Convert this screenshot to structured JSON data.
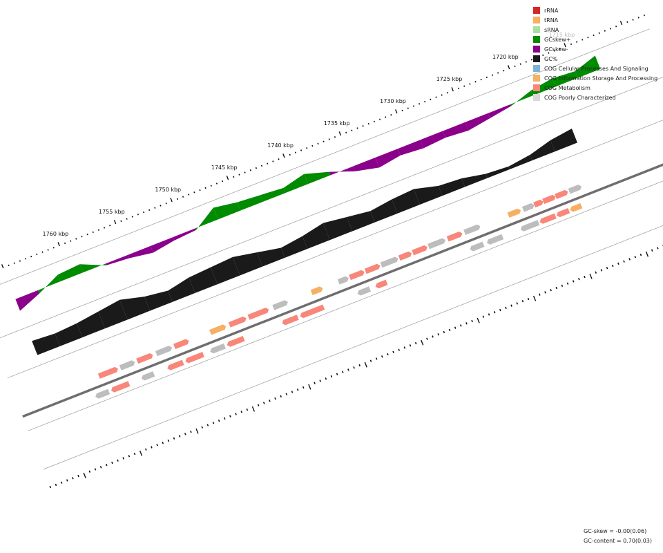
{
  "legend": [
    {
      "label": "rRNA",
      "color": "#d62728"
    },
    {
      "label": "tRNA",
      "color": "#f5b062"
    },
    {
      "label": "sRNA",
      "color": "#a8dfa0"
    },
    {
      "label": "GCskew+",
      "color": "#008b00"
    },
    {
      "label": "GCskew-",
      "color": "#8b008b"
    },
    {
      "label": "GC%",
      "color": "#1a1a1a"
    },
    {
      "label": "COG Cellular Processes And Signaling",
      "color": "#7fb2d8"
    },
    {
      "label": "COG Information Storage And Processing",
      "color": "#f5b062"
    },
    {
      "label": "COG Metabolism",
      "color": "#f8877a"
    },
    {
      "label": "COG Poorly Characterized",
      "color": "#d9d9d9"
    }
  ],
  "stats": {
    "gc_skew": "GC-skew = -0.00(0.06)",
    "gc_content": "GC-content = 0.70(0.03)"
  },
  "chart_data": {
    "type": "genome-map",
    "coordinate_labels": [
      "1715 kbp",
      "1720 kbp",
      "1725 kbp",
      "1730 kbp",
      "1735 kbp",
      "1740 kbp",
      "1745 kbp",
      "1750 kbp",
      "1755 kbp",
      "1760 kbp"
    ],
    "coordinate_kbp": [
      1715,
      1720,
      1725,
      1730,
      1735,
      1740,
      1745,
      1750,
      1755,
      1760
    ],
    "gc_skew_kbp": [
      1713,
      1715,
      1717,
      1719,
      1721,
      1723,
      1725,
      1727,
      1729,
      1731,
      1733,
      1735,
      1737,
      1739,
      1741,
      1743,
      1745,
      1747,
      1749,
      1751,
      1753,
      1755,
      1757,
      1759,
      1761,
      1763,
      1765
    ],
    "gc_skew_values": [
      0.08,
      0.04,
      0.05,
      0.03,
      -0.01,
      -0.03,
      -0.05,
      -0.04,
      -0.05,
      -0.04,
      -0.06,
      -0.03,
      0.02,
      0.06,
      0.03,
      0.04,
      0.05,
      0.07,
      -0.01,
      -0.02,
      -0.04,
      -0.02,
      -0.01,
      0.05,
      0.04,
      -0.02,
      -0.07
    ],
    "gc_content_kbp": [
      1717,
      1719,
      1721,
      1723,
      1725,
      1727,
      1729,
      1731,
      1733,
      1735,
      1737,
      1739,
      1741,
      1743,
      1745,
      1747,
      1749,
      1751,
      1753,
      1755,
      1757,
      1759,
      1761,
      1763,
      1765
    ],
    "gc_content_values": [
      0.7,
      0.68,
      0.64,
      0.62,
      0.63,
      0.66,
      0.67,
      0.71,
      0.7,
      0.68,
      0.7,
      0.72,
      0.69,
      0.67,
      0.7,
      0.73,
      0.72,
      0.71,
      0.68,
      0.7,
      0.74,
      0.72,
      0.7,
      0.69,
      0.7
    ],
    "genes_forward": [
      {
        "start": 1718.2,
        "end": 1719.1,
        "cog": "Poorly Characterized"
      },
      {
        "start": 1719.4,
        "end": 1720.3,
        "cog": "Metabolism"
      },
      {
        "start": 1720.5,
        "end": 1721.4,
        "cog": "Metabolism"
      },
      {
        "start": 1721.6,
        "end": 1722.2,
        "cog": "Metabolism"
      },
      {
        "start": 1722.4,
        "end": 1723.2,
        "cog": "Poorly Characterized"
      },
      {
        "start": 1723.6,
        "end": 1724.5,
        "cog": "Information Storage And Processing"
      },
      {
        "start": 1727.2,
        "end": 1728.4,
        "cog": "Poorly Characterized"
      },
      {
        "start": 1728.8,
        "end": 1729.9,
        "cog": "Metabolism"
      },
      {
        "start": 1730.3,
        "end": 1731.6,
        "cog": "Poorly Characterized"
      },
      {
        "start": 1731.9,
        "end": 1733.0,
        "cog": "Metabolism"
      },
      {
        "start": 1733.3,
        "end": 1734.2,
        "cog": "Metabolism"
      },
      {
        "start": 1734.5,
        "end": 1735.8,
        "cog": "Poorly Characterized"
      },
      {
        "start": 1736.1,
        "end": 1737.2,
        "cog": "Metabolism"
      },
      {
        "start": 1737.5,
        "end": 1738.6,
        "cog": "Metabolism"
      },
      {
        "start": 1738.9,
        "end": 1739.6,
        "cog": "Poorly Characterized"
      },
      {
        "start": 1741.2,
        "end": 1742.0,
        "cog": "Information Storage And Processing"
      },
      {
        "start": 1744.3,
        "end": 1745.4,
        "cog": "Poorly Characterized"
      },
      {
        "start": 1746.0,
        "end": 1747.6,
        "cog": "Metabolism"
      },
      {
        "start": 1748.0,
        "end": 1749.3,
        "cog": "Metabolism"
      },
      {
        "start": 1749.8,
        "end": 1751.0,
        "cog": "Information Storage And Processing"
      },
      {
        "start": 1753.1,
        "end": 1754.2,
        "cog": "Metabolism"
      },
      {
        "start": 1754.6,
        "end": 1755.8,
        "cog": "Poorly Characterized"
      },
      {
        "start": 1756.3,
        "end": 1757.5,
        "cog": "Metabolism"
      },
      {
        "start": 1757.9,
        "end": 1759.0,
        "cog": "Poorly Characterized"
      },
      {
        "start": 1759.4,
        "end": 1760.9,
        "cog": "Metabolism"
      }
    ],
    "genes_reverse": [
      {
        "start": 1718.6,
        "end": 1719.4,
        "cog": "Information Storage And Processing"
      },
      {
        "start": 1719.7,
        "end": 1720.6,
        "cog": "Metabolism"
      },
      {
        "start": 1720.9,
        "end": 1722.1,
        "cog": "Metabolism"
      },
      {
        "start": 1722.4,
        "end": 1723.8,
        "cog": "Poorly Characterized"
      },
      {
        "start": 1725.6,
        "end": 1726.8,
        "cog": "Poorly Characterized"
      },
      {
        "start": 1727.3,
        "end": 1728.3,
        "cog": "Poorly Characterized"
      },
      {
        "start": 1735.9,
        "end": 1736.7,
        "cog": "Metabolism"
      },
      {
        "start": 1737.4,
        "end": 1738.3,
        "cog": "Poorly Characterized"
      },
      {
        "start": 1741.5,
        "end": 1743.4,
        "cog": "Metabolism"
      },
      {
        "start": 1743.8,
        "end": 1745.0,
        "cog": "Metabolism"
      },
      {
        "start": 1748.6,
        "end": 1749.9,
        "cog": "Metabolism"
      },
      {
        "start": 1750.3,
        "end": 1751.4,
        "cog": "Poorly Characterized"
      },
      {
        "start": 1752.2,
        "end": 1753.6,
        "cog": "Metabolism"
      },
      {
        "start": 1754.0,
        "end": 1755.2,
        "cog": "Metabolism"
      },
      {
        "start": 1756.6,
        "end": 1757.5,
        "cog": "Poorly Characterized"
      },
      {
        "start": 1758.8,
        "end": 1760.2,
        "cog": "Metabolism"
      },
      {
        "start": 1760.6,
        "end": 1761.6,
        "cog": "Poorly Characterized"
      }
    ]
  }
}
